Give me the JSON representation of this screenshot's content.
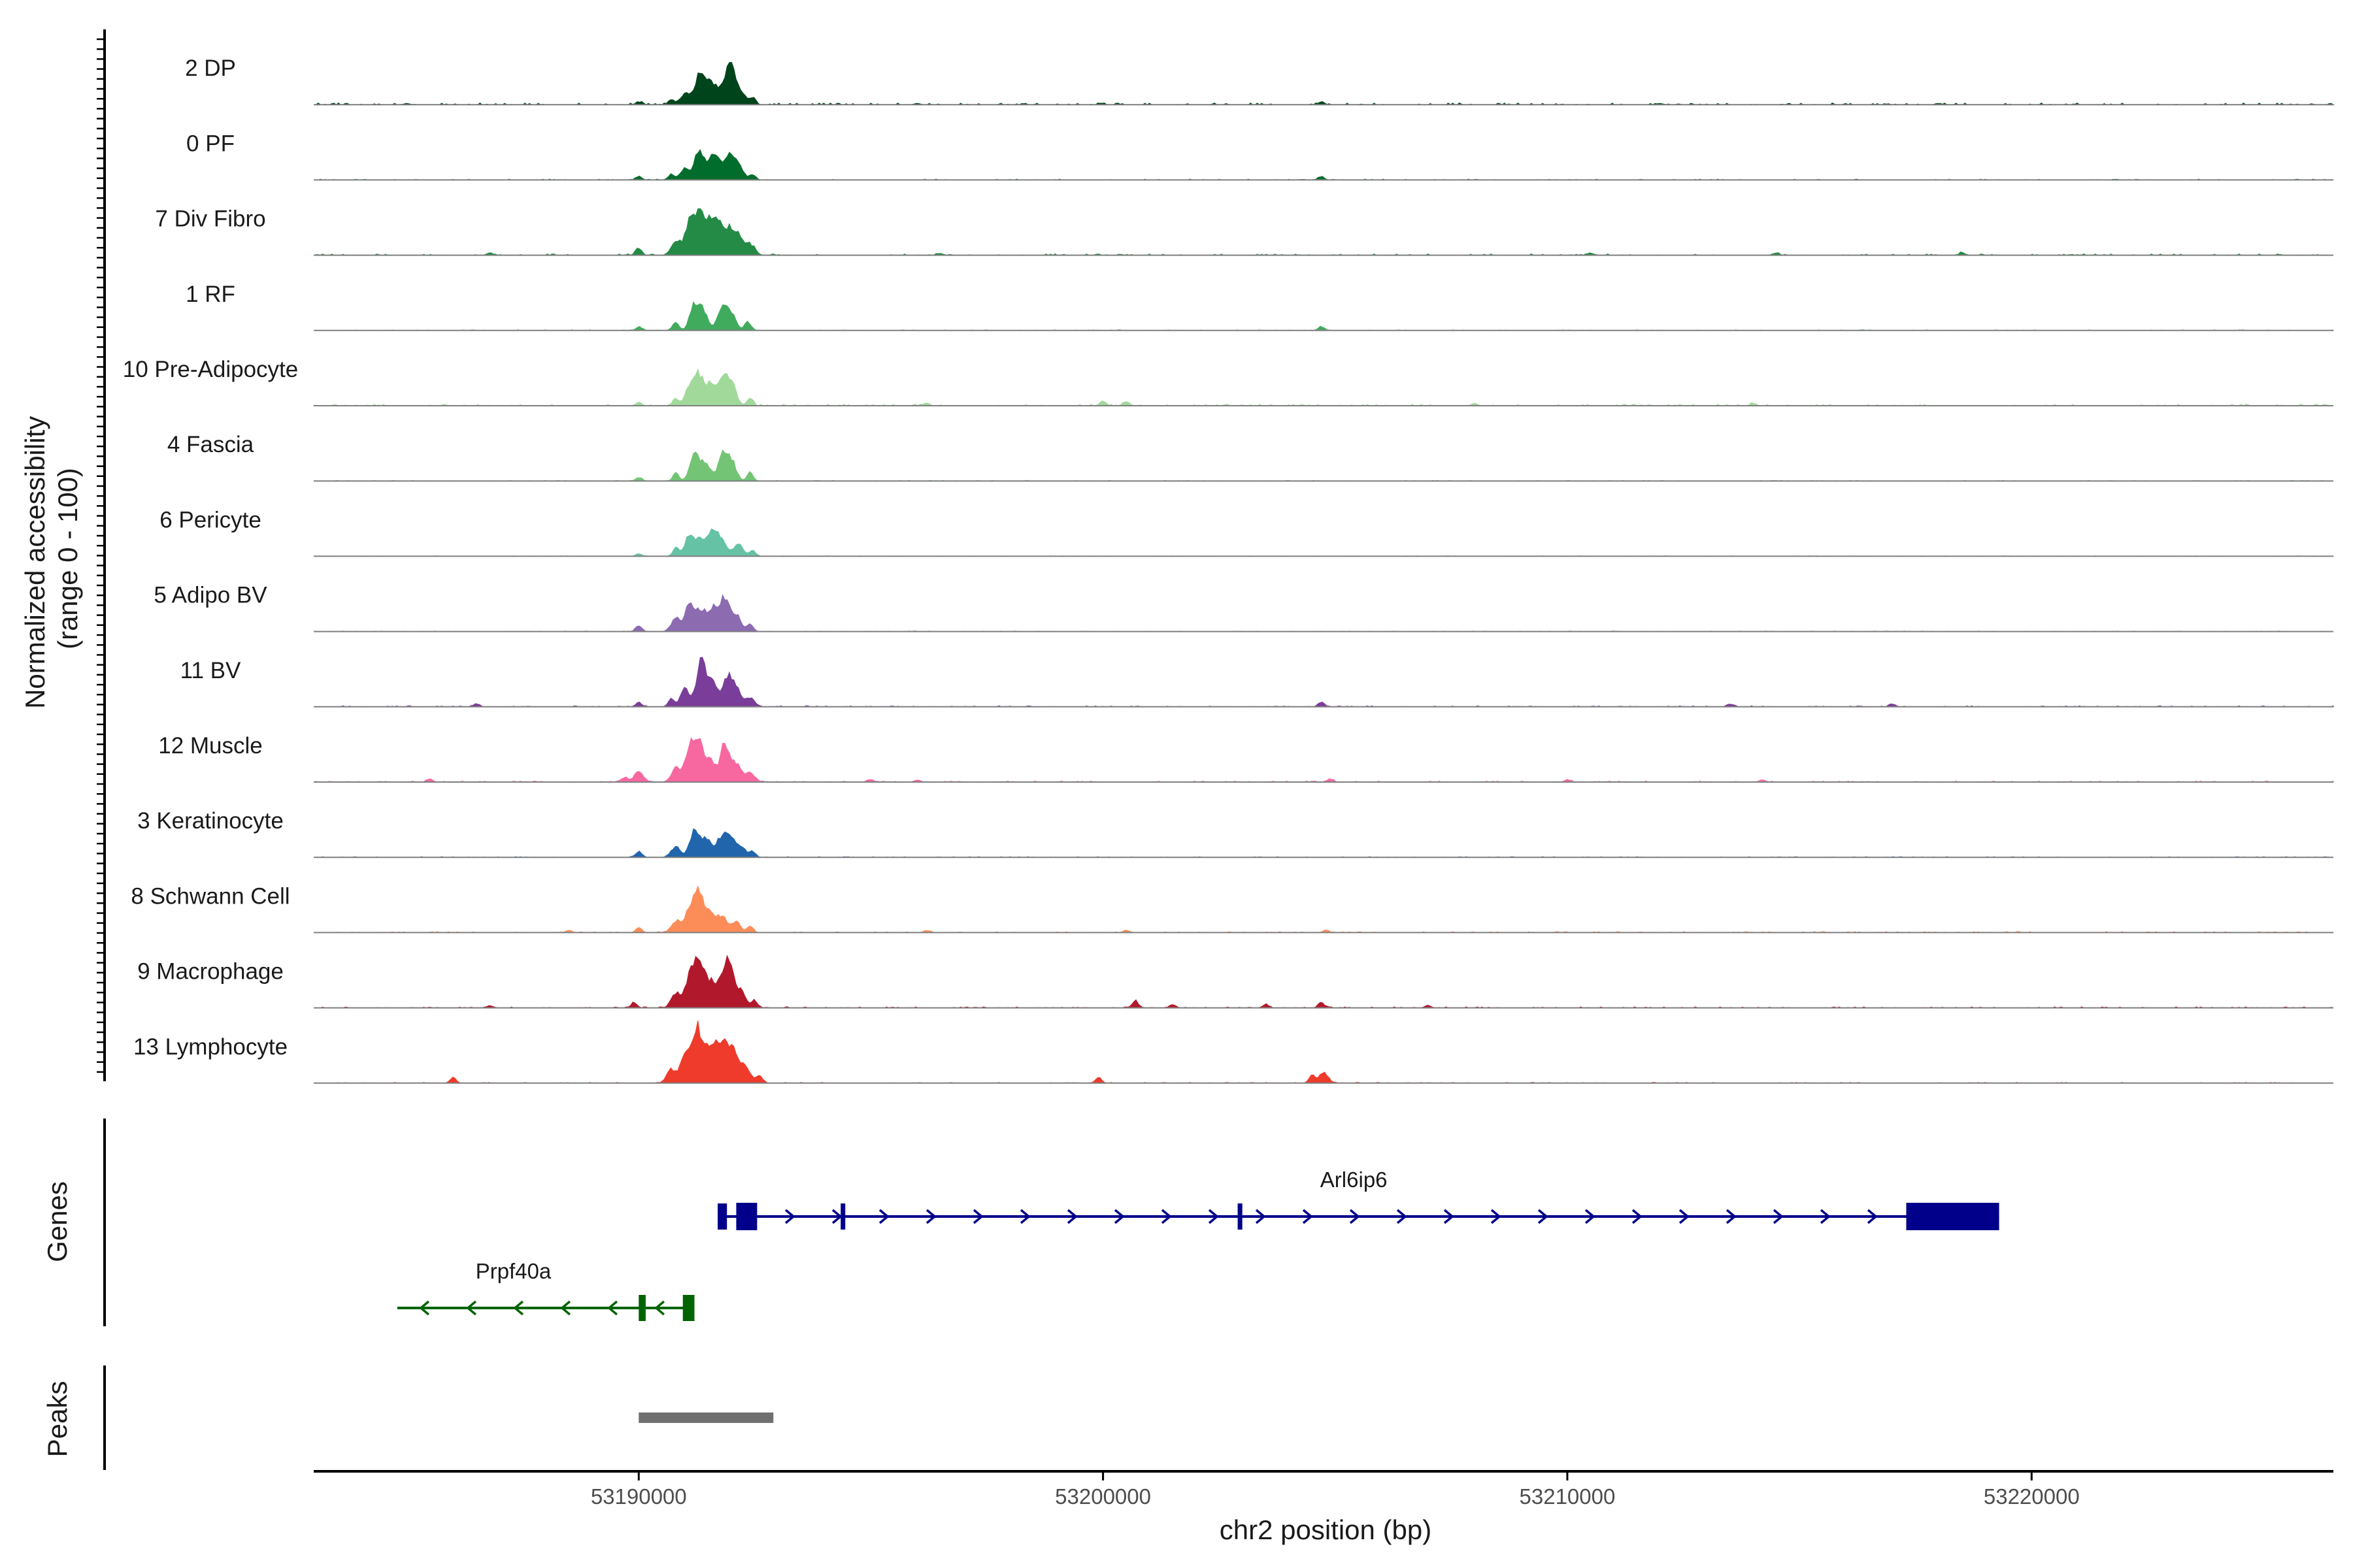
{
  "chart_data": {
    "type": "area",
    "title": "",
    "ylabel": "Normalized accessibility\n(range 0 - 100)",
    "ylabel_lines": [
      "Normalized accessibility",
      "(range 0 - 100)"
    ],
    "xlabel": "chr2 position (bp)",
    "xlim": [
      53183000,
      53226500
    ],
    "ylim": [
      0,
      100
    ],
    "xticks": [
      53190000,
      53200000,
      53210000,
      53220000
    ],
    "xtick_labels": [
      "53190000",
      "53200000",
      "53210000",
      "53220000"
    ],
    "tracks": [
      {
        "name": "2 DP",
        "color": "#00441b",
        "peaks": [
          [
            53190000,
            4
          ],
          [
            53190700,
            9
          ],
          [
            53191000,
            18
          ],
          [
            53191300,
            48
          ],
          [
            53191500,
            35
          ],
          [
            53191700,
            22
          ],
          [
            53191900,
            32
          ],
          [
            53192000,
            46
          ],
          [
            53192200,
            20
          ],
          [
            53192450,
            12
          ],
          [
            53204700,
            5
          ],
          [
            53185000,
            2
          ],
          [
            53196000,
            2
          ],
          [
            53212000,
            2
          ],
          [
            53218000,
            2
          ]
        ],
        "noise": 2.5
      },
      {
        "name": "0 PF",
        "color": "#006d2c",
        "peaks": [
          [
            53190000,
            6
          ],
          [
            53190700,
            10
          ],
          [
            53191000,
            20
          ],
          [
            53191300,
            46
          ],
          [
            53191550,
            30
          ],
          [
            53191700,
            25
          ],
          [
            53191950,
            42
          ],
          [
            53192150,
            22
          ],
          [
            53192450,
            10
          ],
          [
            53204700,
            5
          ]
        ],
        "noise": 1.2
      },
      {
        "name": "7 Div Fibro",
        "color": "#238b45",
        "peaks": [
          [
            53190000,
            12
          ],
          [
            53190800,
            25
          ],
          [
            53191100,
            55
          ],
          [
            53191300,
            60
          ],
          [
            53191500,
            48
          ],
          [
            53191700,
            58
          ],
          [
            53191950,
            40
          ],
          [
            53192150,
            30
          ],
          [
            53192400,
            18
          ],
          [
            53186800,
            4
          ],
          [
            53196500,
            3
          ],
          [
            53210500,
            4
          ],
          [
            53214500,
            4
          ],
          [
            53218500,
            4
          ]
        ],
        "noise": 2.0
      },
      {
        "name": "1 RF",
        "color": "#41ab5d",
        "peaks": [
          [
            53190000,
            6
          ],
          [
            53190800,
            14
          ],
          [
            53191200,
            42
          ],
          [
            53191400,
            30
          ],
          [
            53191800,
            38
          ],
          [
            53192000,
            28
          ],
          [
            53192350,
            15
          ],
          [
            53204700,
            7
          ]
        ],
        "noise": 1.0
      },
      {
        "name": "10 Pre-Adipocyte",
        "color": "#a1d99b",
        "peaks": [
          [
            53190000,
            6
          ],
          [
            53190800,
            12
          ],
          [
            53191100,
            30
          ],
          [
            53191300,
            50
          ],
          [
            53191550,
            35
          ],
          [
            53191800,
            42
          ],
          [
            53192000,
            38
          ],
          [
            53192400,
            14
          ],
          [
            53196200,
            5
          ],
          [
            53200000,
            8
          ],
          [
            53200500,
            7
          ],
          [
            53208000,
            4
          ],
          [
            53214000,
            4
          ]
        ],
        "noise": 2.0
      },
      {
        "name": "4 Fascia",
        "color": "#74c476",
        "peaks": [
          [
            53190000,
            6
          ],
          [
            53190800,
            14
          ],
          [
            53191200,
            46
          ],
          [
            53191450,
            30
          ],
          [
            53191800,
            42
          ],
          [
            53192000,
            32
          ],
          [
            53192400,
            14
          ]
        ],
        "noise": 1.0
      },
      {
        "name": "6 Pericyte",
        "color": "#66c2a5",
        "peaks": [
          [
            53190000,
            4
          ],
          [
            53190800,
            14
          ],
          [
            53191100,
            38
          ],
          [
            53191350,
            28
          ],
          [
            53191600,
            40
          ],
          [
            53191800,
            25
          ],
          [
            53192150,
            22
          ],
          [
            53192450,
            10
          ]
        ],
        "noise": 0.8
      },
      {
        "name": "5 Adipo BV",
        "color": "#8c6bb1",
        "peaks": [
          [
            53190000,
            10
          ],
          [
            53190800,
            22
          ],
          [
            53191100,
            45
          ],
          [
            53191350,
            35
          ],
          [
            53191600,
            40
          ],
          [
            53191850,
            55
          ],
          [
            53192100,
            28
          ],
          [
            53192400,
            14
          ]
        ],
        "noise": 0.8
      },
      {
        "name": "11 BV",
        "color": "#7a3d99",
        "peaks": [
          [
            53186500,
            5
          ],
          [
            53190000,
            8
          ],
          [
            53190700,
            14
          ],
          [
            53191000,
            30
          ],
          [
            53191350,
            75
          ],
          [
            53191600,
            40
          ],
          [
            53191900,
            48
          ],
          [
            53192100,
            30
          ],
          [
            53192400,
            16
          ],
          [
            53204700,
            8
          ],
          [
            53213500,
            5
          ],
          [
            53217000,
            5
          ]
        ],
        "noise": 1.5
      },
      {
        "name": "12 Muscle",
        "color": "#f768a1",
        "peaks": [
          [
            53185500,
            5
          ],
          [
            53189700,
            8
          ],
          [
            53190000,
            18
          ],
          [
            53190800,
            22
          ],
          [
            53191100,
            55
          ],
          [
            53191300,
            70
          ],
          [
            53191550,
            35
          ],
          [
            53191850,
            60
          ],
          [
            53192100,
            30
          ],
          [
            53192400,
            16
          ],
          [
            53195000,
            4
          ],
          [
            53196000,
            4
          ],
          [
            53204900,
            5
          ],
          [
            53210000,
            4
          ],
          [
            53214200,
            4
          ]
        ],
        "noise": 1.5
      },
      {
        "name": "3 Keratinocyte",
        "color": "#2166ac",
        "peaks": [
          [
            53190000,
            10
          ],
          [
            53190800,
            18
          ],
          [
            53191200,
            45
          ],
          [
            53191450,
            30
          ],
          [
            53191750,
            28
          ],
          [
            53191950,
            38
          ],
          [
            53192200,
            18
          ],
          [
            53192450,
            10
          ]
        ],
        "noise": 1.0
      },
      {
        "name": "8 Schwann Cell",
        "color": "#fc8d59",
        "peaks": [
          [
            53188500,
            4
          ],
          [
            53190000,
            8
          ],
          [
            53190800,
            20
          ],
          [
            53191100,
            40
          ],
          [
            53191300,
            70
          ],
          [
            53191550,
            32
          ],
          [
            53191800,
            28
          ],
          [
            53192100,
            18
          ],
          [
            53192400,
            10
          ],
          [
            53196200,
            4
          ],
          [
            53200500,
            4
          ],
          [
            53204800,
            4
          ]
        ],
        "noise": 1.5
      },
      {
        "name": "9 Macrophage",
        "color": "#b2182b",
        "peaks": [
          [
            53186800,
            4
          ],
          [
            53189900,
            8
          ],
          [
            53190800,
            25
          ],
          [
            53191100,
            52
          ],
          [
            53191300,
            82
          ],
          [
            53191550,
            45
          ],
          [
            53191800,
            40
          ],
          [
            53191950,
            65
          ],
          [
            53192200,
            30
          ],
          [
            53192500,
            12
          ],
          [
            53200700,
            12
          ],
          [
            53201500,
            6
          ],
          [
            53203500,
            6
          ],
          [
            53204700,
            10
          ],
          [
            53207000,
            4
          ]
        ],
        "noise": 1.5
      },
      {
        "name": "13 Lymphocyte",
        "color": "#ef3b2c",
        "peaks": [
          [
            53186000,
            10
          ],
          [
            53190700,
            22
          ],
          [
            53191000,
            50
          ],
          [
            53191250,
            88
          ],
          [
            53191450,
            40
          ],
          [
            53191650,
            60
          ],
          [
            53191850,
            55
          ],
          [
            53192050,
            48
          ],
          [
            53192300,
            30
          ],
          [
            53192600,
            14
          ],
          [
            53199900,
            10
          ],
          [
            53204500,
            12
          ],
          [
            53204750,
            18
          ]
        ],
        "noise": 1.2
      }
    ],
    "genes": [
      {
        "name": "Arl6ip6",
        "color": "#00008b",
        "strand": "+",
        "start": 53191700,
        "end": 53219300,
        "exons": [
          [
            53191700,
            53191900
          ],
          [
            53192100,
            53192550
          ],
          [
            53194350,
            53194400
          ],
          [
            53202900,
            53203000
          ],
          [
            53217300,
            53219300
          ]
        ]
      },
      {
        "name": "Prpf40a",
        "color": "#006400",
        "strand": "-",
        "start": 53184800,
        "end": 53191200,
        "exons": [
          [
            53190000,
            53190150
          ],
          [
            53190950,
            53191200
          ]
        ]
      }
    ],
    "peaks_track": [
      {
        "start": 53190000,
        "end": 53192900,
        "color": "#707070"
      }
    ],
    "panels": {
      "genes": "Genes",
      "peaks": "Peaks"
    }
  }
}
